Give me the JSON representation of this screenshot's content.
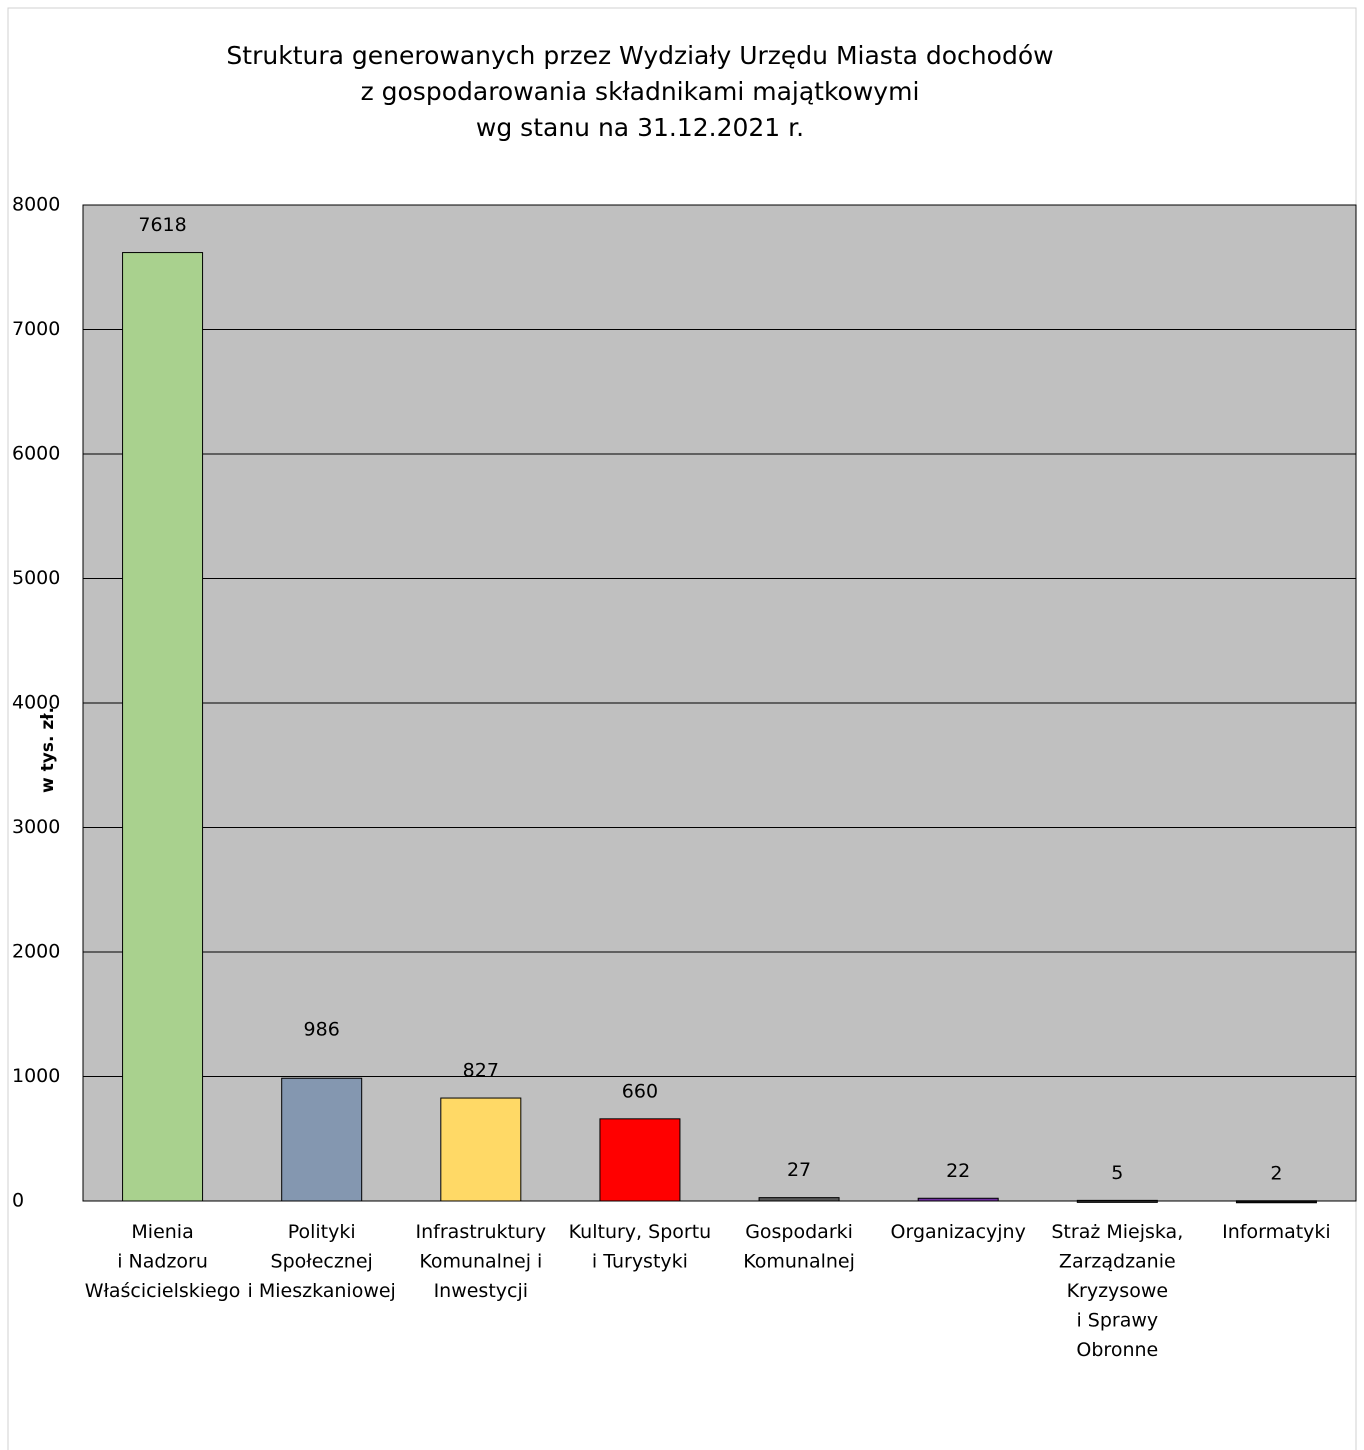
{
  "chart_data": {
    "type": "bar",
    "title": "Struktura generowanych przez Wydziały Urzędu Miasta dochodów\nz gospodarowania składnikami majątkowymi\nwg stanu na 31.12.2021 r.",
    "y_label": "w tys. zł.",
    "categories": [
      "Mienia\ni Nadzoru\nWłaścicielskiego",
      "Polityki\nSpołecznej\ni Mieszkaniowej",
      "Infrastruktury\nKomunalnej i\nInwestycji",
      "Kultury, Sportu\ni Turystyki",
      "Gospodarki\nKomunalnej",
      "Organizacyjny",
      "Straż Miejska,\nZarządzanie\nKryzysowe\ni Sprawy\nObronne",
      "Informatyki"
    ],
    "values": [
      7618,
      986,
      827,
      660,
      27,
      22,
      5,
      2
    ],
    "colors": [
      "#a9d18e",
      "#8497b0",
      "#ffd966",
      "#ff0000",
      "#595959",
      "#7030a0",
      "#262626",
      "#0d0d0d"
    ],
    "ylim": [
      0,
      8000
    ],
    "yticks": [
      0,
      1000,
      2000,
      3000,
      4000,
      5000,
      6000,
      7000,
      8000
    ],
    "grid": true,
    "plot_background": "#c0c0c0"
  }
}
